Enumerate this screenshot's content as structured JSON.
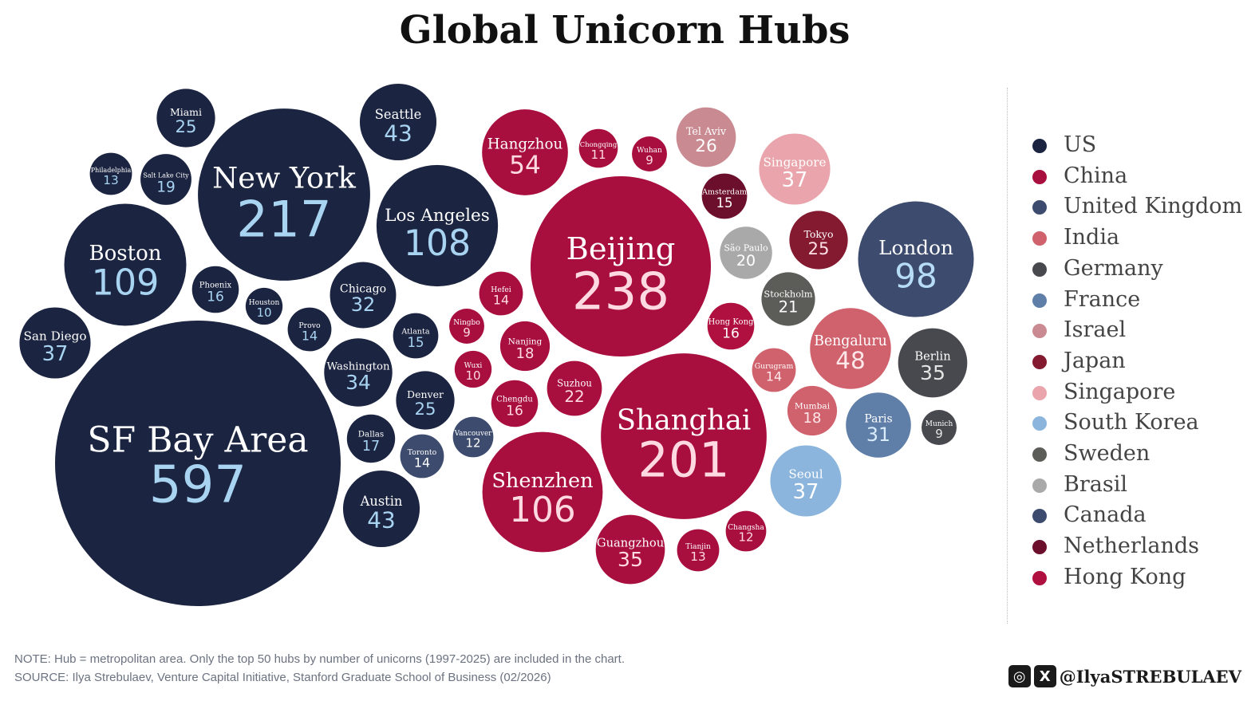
{
  "chart_data": {
    "type": "bubble",
    "title": "Global Unicorn Hubs",
    "legend_position": "right",
    "series": [
      {
        "name": "US",
        "color": "#1b2440",
        "name_color": "#ffffff",
        "value_color": "#a8d4f2"
      },
      {
        "name": "China",
        "color": "#a80f3e",
        "name_color": "#ffffff",
        "value_color": "#ffd9e2"
      },
      {
        "name": "United Kingdom",
        "color": "#3d4c6e",
        "name_color": "#ffffff",
        "value_color": "#b6dcf6"
      },
      {
        "name": "India",
        "color": "#d0626d",
        "name_color": "#ffffff",
        "value_color": "#ffe8ea"
      },
      {
        "name": "Germany",
        "color": "#48494e",
        "name_color": "#ffffff",
        "value_color": "#e4e4e4"
      },
      {
        "name": "France",
        "color": "#5f7ea8",
        "name_color": "#ffffff",
        "value_color": "#d8ecfb"
      },
      {
        "name": "Israel",
        "color": "#c98a92",
        "name_color": "#ffffff",
        "value_color": "#ffffff"
      },
      {
        "name": "Japan",
        "color": "#841a30",
        "name_color": "#ffffff",
        "value_color": "#ffe0e6"
      },
      {
        "name": "Singapore",
        "color": "#e9a5ab",
        "name_color": "#ffffff",
        "value_color": "#ffffff"
      },
      {
        "name": "South Korea",
        "color": "#8bb5dc",
        "name_color": "#ffffff",
        "value_color": "#ffffff"
      },
      {
        "name": "Sweden",
        "color": "#5c5c58",
        "name_color": "#ffffff",
        "value_color": "#ffffff"
      },
      {
        "name": "Brasil",
        "color": "#a9a9a9",
        "name_color": "#ffffff",
        "value_color": "#ffffff"
      },
      {
        "name": "Canada",
        "color": "#3d4c6e",
        "name_color": "#ffffff",
        "value_color": "#ffffff"
      },
      {
        "name": "Netherlands",
        "color": "#6b0f2c",
        "name_color": "#ffffff",
        "value_color": "#ffffff"
      },
      {
        "name": "Hong Kong",
        "color": "#b0103f",
        "name_color": "#ffffff",
        "value_color": "#ffffff"
      }
    ],
    "points": [
      {
        "label": "SF Bay Area",
        "value": 597,
        "group": "US"
      },
      {
        "label": "New York",
        "value": 217,
        "group": "US"
      },
      {
        "label": "Boston",
        "value": 109,
        "group": "US"
      },
      {
        "label": "Los Angeles",
        "value": 108,
        "group": "US"
      },
      {
        "label": "Seattle",
        "value": 43,
        "group": "US"
      },
      {
        "label": "Austin",
        "value": 43,
        "group": "US"
      },
      {
        "label": "San Diego",
        "value": 37,
        "group": "US"
      },
      {
        "label": "Washington",
        "value": 34,
        "group": "US"
      },
      {
        "label": "Chicago",
        "value": 32,
        "group": "US"
      },
      {
        "label": "Miami",
        "value": 25,
        "group": "US"
      },
      {
        "label": "Denver",
        "value": 25,
        "group": "US"
      },
      {
        "label": "Salt Lake City",
        "value": 19,
        "group": "US"
      },
      {
        "label": "Dallas",
        "value": 17,
        "group": "US"
      },
      {
        "label": "Phoenix",
        "value": 16,
        "group": "US"
      },
      {
        "label": "Atlanta",
        "value": 15,
        "group": "US"
      },
      {
        "label": "Provo",
        "value": 14,
        "group": "US"
      },
      {
        "label": "Philadelphia",
        "value": 13,
        "group": "US"
      },
      {
        "label": "Houston",
        "value": 10,
        "group": "US"
      },
      {
        "label": "Toronto",
        "value": 14,
        "group": "Canada"
      },
      {
        "label": "Vancouver",
        "value": 12,
        "group": "Canada"
      },
      {
        "label": "Beijing",
        "value": 238,
        "group": "China"
      },
      {
        "label": "Shanghai",
        "value": 201,
        "group": "China"
      },
      {
        "label": "Shenzhen",
        "value": 106,
        "group": "China"
      },
      {
        "label": "Hangzhou",
        "value": 54,
        "group": "China"
      },
      {
        "label": "Guangzhou",
        "value": 35,
        "group": "China"
      },
      {
        "label": "Suzhou",
        "value": 22,
        "group": "China"
      },
      {
        "label": "Nanjing",
        "value": 18,
        "group": "China"
      },
      {
        "label": "Chengdu",
        "value": 16,
        "group": "China"
      },
      {
        "label": "Hefei",
        "value": 14,
        "group": "China"
      },
      {
        "label": "Tianjin",
        "value": 13,
        "group": "China"
      },
      {
        "label": "Changsha",
        "value": 12,
        "group": "China"
      },
      {
        "label": "Chongqing",
        "value": 11,
        "group": "China"
      },
      {
        "label": "Wuxi",
        "value": 10,
        "group": "China"
      },
      {
        "label": "Wuhan",
        "value": 9,
        "group": "China"
      },
      {
        "label": "Ningbo",
        "value": 9,
        "group": "China"
      },
      {
        "label": "Hong Kong",
        "value": 16,
        "group": "Hong Kong"
      },
      {
        "label": "London",
        "value": 98,
        "group": "United Kingdom"
      },
      {
        "label": "Bengaluru",
        "value": 48,
        "group": "India"
      },
      {
        "label": "Mumbai",
        "value": 18,
        "group": "India"
      },
      {
        "label": "Gurugram",
        "value": 14,
        "group": "India"
      },
      {
        "label": "Berlin",
        "value": 35,
        "group": "Germany"
      },
      {
        "label": "Munich",
        "value": 9,
        "group": "Germany"
      },
      {
        "label": "Paris",
        "value": 31,
        "group": "France"
      },
      {
        "label": "Tel Aviv",
        "value": 26,
        "group": "Israel"
      },
      {
        "label": "Tokyo",
        "value": 25,
        "group": "Japan"
      },
      {
        "label": "Singapore",
        "value": 37,
        "group": "Singapore"
      },
      {
        "label": "Seoul",
        "value": 37,
        "group": "South Korea"
      },
      {
        "label": "Stockholm",
        "value": 21,
        "group": "Sweden"
      },
      {
        "label": "São Paulo",
        "value": 20,
        "group": "Brasil"
      },
      {
        "label": "Amsterdam",
        "value": 15,
        "group": "Netherlands"
      }
    ]
  },
  "footer": {
    "note": "NOTE: Hub = metropolitan area. Only the top 50 hubs by number of unicorns (1997-2025) are included in the chart.",
    "source": "SOURCE: Ilya Strebulaev, Venture Capital Initiative, Stanford Graduate School of Business (02/2026)",
    "handle": "@IlyaSTREBULAEV",
    "icons": [
      "instagram-icon",
      "x-icon"
    ]
  }
}
